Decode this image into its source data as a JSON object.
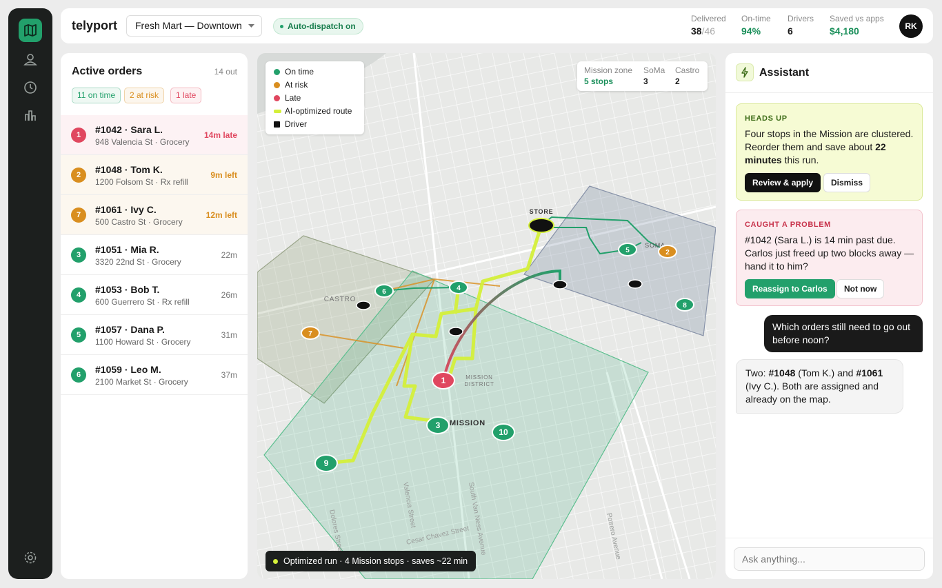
{
  "header": {
    "brand": "telyport",
    "store": "Fresh Mart — Downtown",
    "dispatch": "Auto-dispatch on",
    "stats": [
      {
        "label": "Delivered",
        "value": "38",
        "suffix": "/46"
      },
      {
        "label": "On-time",
        "value": "94%"
      },
      {
        "label": "Drivers",
        "value": "6"
      },
      {
        "label": "Saved vs apps",
        "value": "$4,180"
      }
    ],
    "avatar": "RK"
  },
  "orders": {
    "title": "Active orders",
    "count": "14 out",
    "chips": [
      "11 on time",
      "2 at risk",
      "1 late"
    ],
    "items": [
      {
        "badge": "1",
        "title": "#1042 · Sara L.",
        "address": "948 Valencia St · Grocery",
        "time": "14m late",
        "color": "#e0475f"
      },
      {
        "badge": "2",
        "title": "#1048 · Tom K.",
        "address": "1200 Folsom St · Rx refill",
        "time": "9m left",
        "color": "#d98e1f"
      },
      {
        "badge": "7",
        "title": "#1061 · Ivy C.",
        "address": "500 Castro St · Grocery",
        "time": "12m left",
        "color": "#d98e1f"
      },
      {
        "badge": "3",
        "title": "#1051 · Mia R.",
        "address": "3320 22nd St · Grocery",
        "time": "22m",
        "color": "#22a06b"
      },
      {
        "badge": "4",
        "title": "#1053 · Bob T.",
        "address": "600 Guerrero St · Rx refill",
        "time": "26m",
        "color": "#22a06b"
      },
      {
        "badge": "5",
        "title": "#1057 · Dana P.",
        "address": "1100 Howard St · Grocery",
        "time": "31m",
        "color": "#22a06b"
      },
      {
        "badge": "6",
        "title": "#1059 · Leo M.",
        "address": "2100 Market St · Grocery",
        "time": "37m",
        "color": "#22a06b"
      }
    ]
  },
  "map": {
    "legend": [
      {
        "label": "On time",
        "color": "#22a06b"
      },
      {
        "label": "At risk",
        "color": "#d98e1f"
      },
      {
        "label": "Late",
        "color": "#e0475f"
      },
      {
        "label": "AI-optimized route",
        "color": "#d4ef3a"
      },
      {
        "label": "Driver",
        "color": "#111111"
      }
    ],
    "zones": [
      {
        "name": "Mission zone",
        "value": "5 stops"
      },
      {
        "name": "SoMa",
        "value": "3"
      },
      {
        "name": "Castro",
        "value": "2"
      }
    ],
    "labels": [
      "STORE",
      "CASTRO",
      "MISSION",
      "DISTRICT",
      "MISSION",
      "SOMA"
    ],
    "streets": [
      "Cesar Chavez Street",
      "Dolores Street",
      "Valencia Street",
      "South Van Ness Avenue",
      "Potrero Avenue"
    ],
    "pins": [
      {
        "label": "1",
        "color": "#e0475f"
      },
      {
        "label": "7",
        "color": "#d98e1f"
      },
      {
        "label": "2",
        "color": "#d98e1f"
      },
      {
        "label": "6",
        "color": "#22a06b"
      },
      {
        "label": "4",
        "color": "#22a06b"
      },
      {
        "label": "5",
        "color": "#22a06b"
      },
      {
        "label": "8",
        "color": "#22a06b"
      },
      {
        "label": "3",
        "color": "#22a06b"
      },
      {
        "label": "10",
        "color": "#22a06b"
      },
      {
        "label": "9",
        "color": "#22a06b"
      }
    ],
    "banner": "Optimized run · 4 Mission stops · saves ~22 min"
  },
  "assistant": {
    "title": "Assistant",
    "heads_up": {
      "kicker": "HEADS UP",
      "parts": [
        "Four stops in the Mission are clustered. Reorder them and save about ",
        "22 minutes",
        " this run."
      ],
      "buttons": [
        "Review & apply",
        "Dismiss"
      ]
    },
    "problem": {
      "kicker": "CAUGHT A PROBLEM",
      "text": "#1042 (Sara L.) is 14 min past due. Carlos just freed up two blocks away — hand it to him?",
      "buttons": [
        "Reassign to Carlos",
        "Not now"
      ]
    },
    "user_message": "Which orders still need to go out before noon?",
    "reply_parts": [
      "Two: ",
      "#1048",
      " (Tom K.) and ",
      "#1061",
      " (Ivy C.). Both are assigned and already on the map."
    ],
    "input_placeholder": "Ask anything..."
  }
}
